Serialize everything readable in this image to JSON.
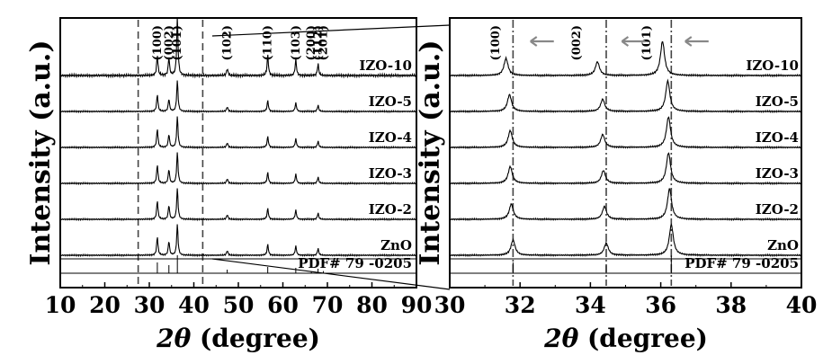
{
  "chart_data": [
    {
      "type": "line",
      "panel": "left",
      "xlabel_symbol": "2θ",
      "xlabel_unit": " (degree)",
      "ylabel": "Intensity (a.u.)",
      "xlim": [
        10,
        90
      ],
      "xticks": [
        10,
        20,
        30,
        40,
        50,
        60,
        70,
        80,
        90
      ],
      "reference_lines": [
        27.5,
        42
      ],
      "peak_labels": [
        {
          "x": 31.8,
          "text": "(100)"
        },
        {
          "x": 34.4,
          "text": "(002)"
        },
        {
          "x": 36.3,
          "text": "(101)"
        },
        {
          "x": 47.5,
          "text": "(102)"
        },
        {
          "x": 56.6,
          "text": "(110)"
        },
        {
          "x": 62.9,
          "text": "(103)"
        },
        {
          "x": 66.4,
          "text": "(200)"
        },
        {
          "x": 67.9,
          "text": "(112)"
        },
        {
          "x": 69.1,
          "text": "(201)"
        }
      ],
      "series": [
        {
          "name": "IZO-10",
          "peaks": [
            [
              31.8,
              0.35
            ],
            [
              34.4,
              0.3
            ],
            [
              36.3,
              1.0
            ],
            [
              47.5,
              0.12
            ],
            [
              56.6,
              0.35
            ],
            [
              62.9,
              0.28
            ],
            [
              67.9,
              0.2
            ]
          ]
        },
        {
          "name": "IZO-5",
          "peaks": [
            [
              31.8,
              0.55
            ],
            [
              34.4,
              0.4
            ],
            [
              36.3,
              1.0
            ],
            [
              47.5,
              0.15
            ],
            [
              56.6,
              0.35
            ],
            [
              62.9,
              0.28
            ],
            [
              67.9,
              0.2
            ]
          ]
        },
        {
          "name": "IZO-4",
          "peaks": [
            [
              31.8,
              0.6
            ],
            [
              34.4,
              0.42
            ],
            [
              36.3,
              1.0
            ],
            [
              47.5,
              0.15
            ],
            [
              56.6,
              0.35
            ],
            [
              62.9,
              0.28
            ],
            [
              67.9,
              0.2
            ]
          ]
        },
        {
          "name": "IZO-3",
          "peaks": [
            [
              31.8,
              0.6
            ],
            [
              34.4,
              0.45
            ],
            [
              36.3,
              1.0
            ],
            [
              47.5,
              0.15
            ],
            [
              56.6,
              0.35
            ],
            [
              62.9,
              0.3
            ],
            [
              67.9,
              0.2
            ]
          ]
        },
        {
          "name": "IZO-2",
          "peaks": [
            [
              31.8,
              0.6
            ],
            [
              34.4,
              0.45
            ],
            [
              36.3,
              1.0
            ],
            [
              47.5,
              0.15
            ],
            [
              56.6,
              0.35
            ],
            [
              62.9,
              0.3
            ],
            [
              67.9,
              0.2
            ]
          ]
        },
        {
          "name": "ZnO",
          "peaks": [
            [
              31.8,
              0.6
            ],
            [
              34.4,
              0.45
            ],
            [
              36.3,
              1.0
            ],
            [
              47.5,
              0.15
            ],
            [
              56.6,
              0.35
            ],
            [
              62.9,
              0.3
            ],
            [
              67.9,
              0.22
            ]
          ]
        },
        {
          "name": "PDF# 79 -0205",
          "peaks": [
            [
              31.8,
              0.6
            ],
            [
              34.4,
              0.45
            ],
            [
              36.3,
              1.0
            ],
            [
              47.5,
              0.2
            ],
            [
              56.6,
              0.35
            ],
            [
              62.9,
              0.3
            ],
            [
              66.4,
              0.1
            ],
            [
              67.9,
              0.25
            ],
            [
              69.1,
              0.12
            ]
          ]
        }
      ]
    },
    {
      "type": "line",
      "panel": "right",
      "xlabel_symbol": "2θ",
      "xlabel_unit": " (degree)",
      "ylabel": "Intensity (a.u.)",
      "xlim": [
        30,
        40
      ],
      "xticks": [
        30,
        32,
        34,
        36,
        38,
        40
      ],
      "reference_lines": [
        31.8,
        34.45,
        36.3
      ],
      "peak_labels": [
        {
          "x": 31.3,
          "text": "(100)"
        },
        {
          "x": 33.6,
          "text": "(002)"
        },
        {
          "x": 35.6,
          "text": "(101)"
        }
      ],
      "shift_arrows": [
        32.5,
        35.1,
        36.9
      ],
      "series": [
        {
          "name": "IZO-10",
          "peaks": [
            [
              31.6,
              0.5
            ],
            [
              34.2,
              0.4
            ],
            [
              36.05,
              1.0
            ]
          ]
        },
        {
          "name": "IZO-5",
          "peaks": [
            [
              31.7,
              0.55
            ],
            [
              34.35,
              0.4
            ],
            [
              36.2,
              1.0
            ]
          ]
        },
        {
          "name": "IZO-4",
          "peaks": [
            [
              31.72,
              0.55
            ],
            [
              34.35,
              0.42
            ],
            [
              36.22,
              1.0
            ]
          ]
        },
        {
          "name": "IZO-3",
          "peaks": [
            [
              31.72,
              0.55
            ],
            [
              34.37,
              0.42
            ],
            [
              36.22,
              1.0
            ]
          ]
        },
        {
          "name": "IZO-2",
          "peaks": [
            [
              31.75,
              0.5
            ],
            [
              34.4,
              0.42
            ],
            [
              36.25,
              1.0
            ]
          ]
        },
        {
          "name": "ZnO",
          "peaks": [
            [
              31.8,
              0.5
            ],
            [
              34.45,
              0.4
            ],
            [
              36.3,
              1.0
            ]
          ]
        },
        {
          "name": "PDF# 79 -0205",
          "peaks": [
            [
              31.8,
              0.55
            ],
            [
              34.45,
              0.4
            ],
            [
              36.3,
              0.9
            ]
          ]
        }
      ]
    }
  ]
}
